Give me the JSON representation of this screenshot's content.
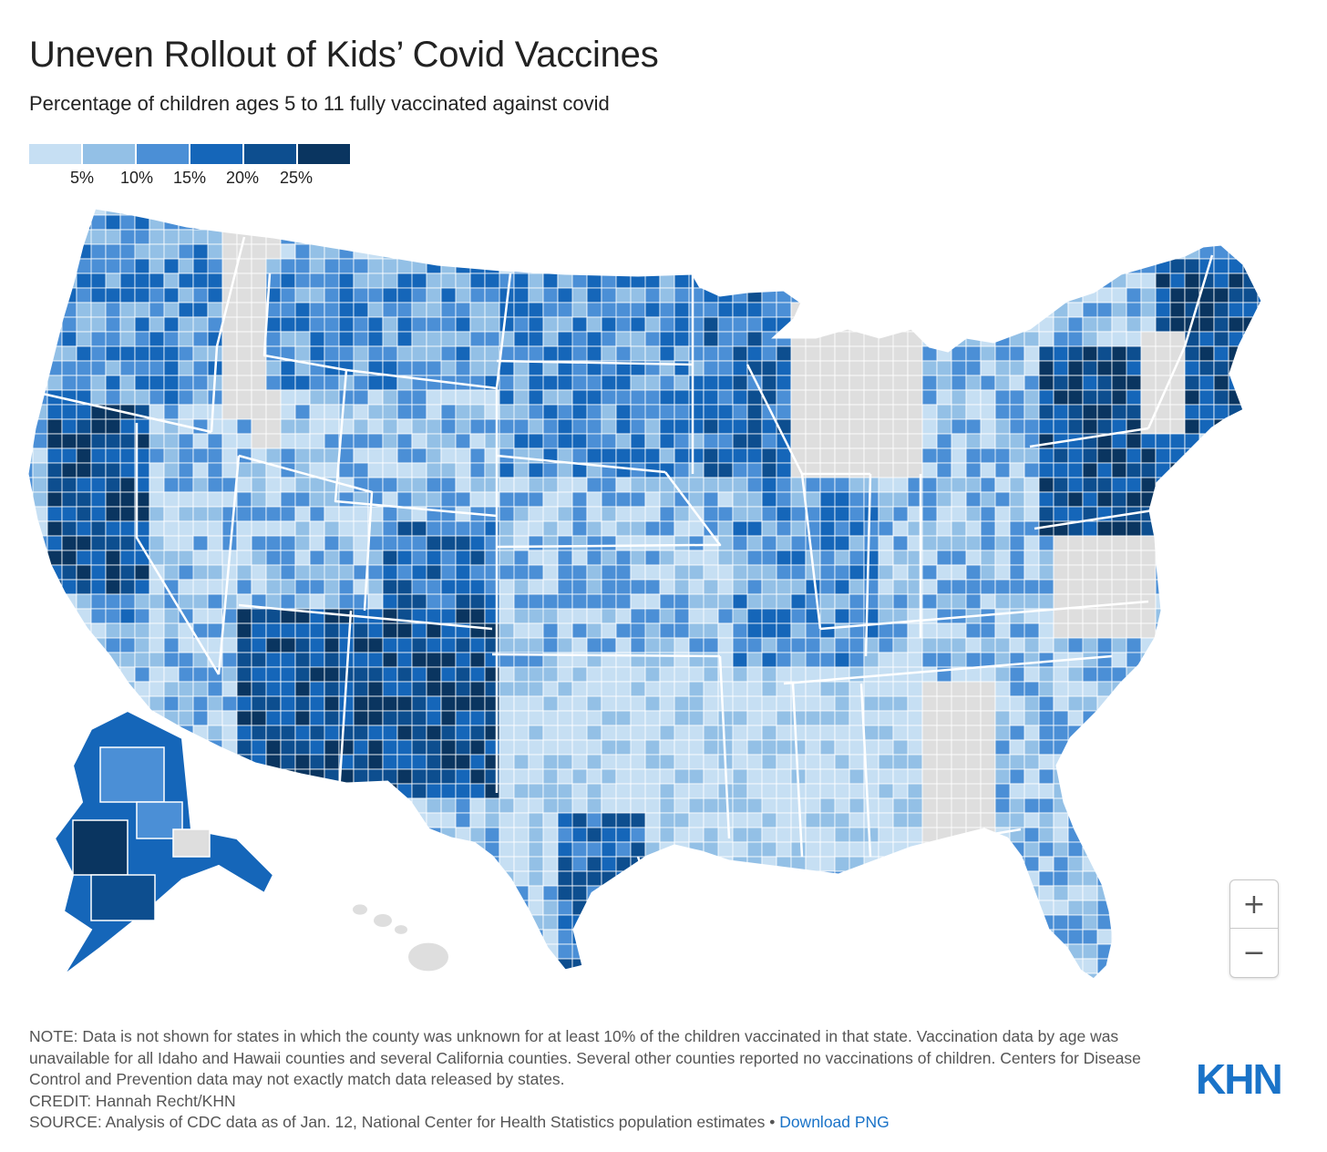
{
  "header": {
    "title": "Uneven Rollout of Kids’ Covid Vaccines",
    "subtitle": "Percentage of children ages 5 to 11 fully vaccinated against covid"
  },
  "legend": {
    "colors": [
      "#c6dff3",
      "#93c0e6",
      "#4b8fd6",
      "#1566b9",
      "#0d4e8f",
      "#0a3560"
    ],
    "ticks": [
      "5%",
      "10%",
      "15%",
      "20%",
      "25%"
    ],
    "no_data_color": "#dedede"
  },
  "zoom": {
    "in_label": "+",
    "out_label": "−"
  },
  "footer": {
    "note": "NOTE: Data is not shown for states in which the county was unknown for at least 10% of the children vaccinated in that state. Vaccination data by age was unavailable for all Idaho and Hawaii counties and several California counties. Several other counties reported no vaccinations of children. Centers for Disease Control and Prevention data may not exactly match data released by states.",
    "credit": "CREDIT: Hannah Recht/KHN",
    "source": "SOURCE: Analysis of CDC data as of Jan. 12, National Center for Health Statistics population estimates",
    "separator": " • ",
    "download_label": "Download PNG",
    "logo_text": "KHN",
    "logo_color": "#1a73c8"
  }
}
